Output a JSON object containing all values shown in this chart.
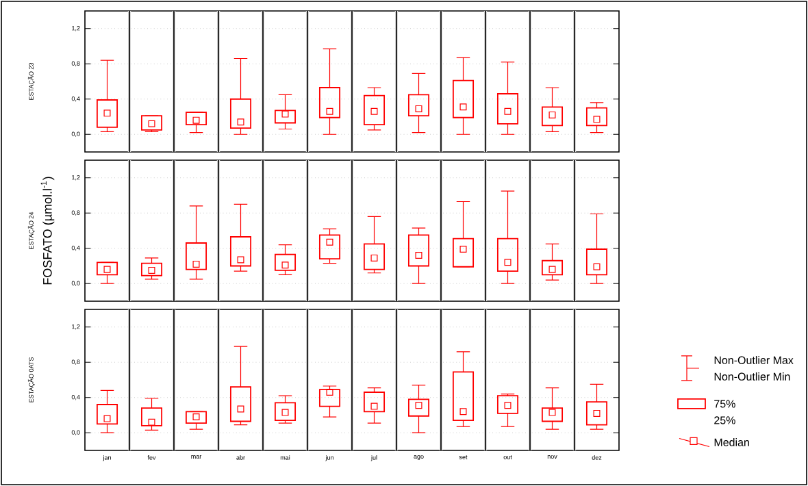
{
  "chart_data": [
    {
      "type": "box",
      "ylabel": "ESTAÇÃO 23",
      "categories": [
        null,
        null,
        null,
        null,
        null,
        null,
        null,
        null,
        null,
        null,
        null,
        null
      ],
      "ylim": [
        -0.2,
        1.4
      ],
      "yticks": [
        {
          "value": 0,
          "label": "0,0"
        },
        {
          "value": 0.4,
          "label": "0,4"
        },
        {
          "value": 0.8,
          "label": "0,8"
        },
        {
          "value": 1.2,
          "label": "1,2"
        }
      ],
      "grid": "y",
      "tick_labels": "y",
      "color": "#ff0000",
      "boxes": [
        {
          "low": 0.03,
          "q1": 0.08,
          "median": 0.24,
          "q3": 0.39,
          "high": 0.84
        },
        {
          "low": 0.03,
          "q1": 0.05,
          "median": 0.12,
          "q3": 0.21,
          "high": 0.21
        },
        {
          "low": 0.02,
          "q1": 0.11,
          "median": 0.16,
          "q3": 0.25,
          "high": 0.25
        },
        {
          "low": 0.0,
          "q1": 0.07,
          "median": 0.14,
          "q3": 0.4,
          "high": 0.86
        },
        {
          "low": 0.06,
          "q1": 0.13,
          "median": 0.23,
          "q3": 0.27,
          "high": 0.45
        },
        {
          "low": 0.0,
          "q1": 0.19,
          "median": 0.26,
          "q3": 0.53,
          "high": 0.97
        },
        {
          "low": 0.05,
          "q1": 0.11,
          "median": 0.26,
          "q3": 0.44,
          "high": 0.53
        },
        {
          "low": 0.02,
          "q1": 0.21,
          "median": 0.29,
          "q3": 0.45,
          "high": 0.69
        },
        {
          "low": 0.0,
          "q1": 0.19,
          "median": 0.31,
          "q3": 0.61,
          "high": 0.87
        },
        {
          "low": 0.0,
          "q1": 0.12,
          "median": 0.26,
          "q3": 0.46,
          "high": 0.82
        },
        {
          "low": 0.03,
          "q1": 0.1,
          "median": 0.22,
          "q3": 0.31,
          "high": 0.53
        },
        {
          "low": 0.02,
          "q1": 0.1,
          "median": 0.17,
          "q3": 0.3,
          "high": 0.36
        }
      ]
    },
    {
      "type": "box",
      "ylabel": "ESTAÇÃO 24",
      "annotations": [
        "FOSFATO (µmol.l$^{-1}$)"
      ],
      "categories": [
        null,
        null,
        null,
        null,
        null,
        null,
        null,
        null,
        null,
        null,
        null,
        null
      ],
      "ylim": [
        -0.2,
        1.4
      ],
      "yticks": [
        {
          "value": 0,
          "label": "0,0"
        },
        {
          "value": 0.4,
          "label": "0,4"
        },
        {
          "value": 0.8,
          "label": "0,8"
        },
        {
          "value": 1.2,
          "label": "1,2"
        }
      ],
      "grid": "y",
      "tick_labels": "y",
      "color": "#ff0000",
      "boxes": [
        {
          "low": 0.0,
          "q1": 0.1,
          "median": 0.16,
          "q3": 0.24,
          "high": 0.24
        },
        {
          "low": 0.05,
          "q1": 0.09,
          "median": 0.15,
          "q3": 0.23,
          "high": 0.29
        },
        {
          "low": 0.05,
          "q1": 0.16,
          "median": 0.22,
          "q3": 0.46,
          "high": 0.88
        },
        {
          "low": 0.14,
          "q1": 0.2,
          "median": 0.27,
          "q3": 0.53,
          "high": 0.9
        },
        {
          "low": 0.1,
          "q1": 0.15,
          "median": 0.21,
          "q3": 0.33,
          "high": 0.44
        },
        {
          "low": 0.23,
          "q1": 0.28,
          "median": 0.47,
          "q3": 0.55,
          "high": 0.62
        },
        {
          "low": 0.12,
          "q1": 0.16,
          "median": 0.29,
          "q3": 0.45,
          "high": 0.76
        },
        {
          "low": 0.0,
          "q1": 0.2,
          "median": 0.32,
          "q3": 0.55,
          "high": 0.63
        },
        {
          "low": 0.19,
          "q1": 0.19,
          "median": 0.39,
          "q3": 0.51,
          "high": 0.93
        },
        {
          "low": 0.0,
          "q1": 0.14,
          "median": 0.24,
          "q3": 0.51,
          "high": 1.05
        },
        {
          "low": 0.04,
          "q1": 0.1,
          "median": 0.16,
          "q3": 0.26,
          "high": 0.45
        },
        {
          "low": 0.0,
          "q1": 0.1,
          "median": 0.19,
          "q3": 0.39,
          "high": 0.79
        }
      ]
    },
    {
      "type": "box",
      "ylabel": "ESTAÇÃO 0ATS",
      "annotations": [
        "Non-Outlier Max",
        "Non-Outlier Min",
        "75%",
        "25%",
        "Median"
      ],
      "categories": [
        "jan",
        "fev",
        "mar",
        "abr",
        "mai",
        "jun",
        "jul",
        "ago",
        "set",
        "out",
        "nov",
        "dez"
      ],
      "ylim": [
        -0.2,
        1.4
      ],
      "yticks": [
        {
          "value": 0,
          "label": "0,0"
        },
        {
          "value": 0.4,
          "label": "0,4"
        },
        {
          "value": 0.8,
          "label": "0,8"
        },
        {
          "value": 1.2,
          "label": "1,2"
        }
      ],
      "grid": "y",
      "color": "#ff0000",
      "boxes": [
        {
          "low": 0.0,
          "q1": 0.1,
          "median": 0.16,
          "q3": 0.32,
          "high": 0.48
        },
        {
          "low": 0.03,
          "q1": 0.08,
          "median": 0.12,
          "q3": 0.28,
          "high": 0.39
        },
        {
          "low": 0.04,
          "q1": 0.11,
          "median": 0.18,
          "q3": 0.24,
          "high": 0.24
        },
        {
          "low": 0.09,
          "q1": 0.13,
          "median": 0.27,
          "q3": 0.52,
          "high": 0.98
        },
        {
          "low": 0.11,
          "q1": 0.14,
          "median": 0.23,
          "q3": 0.34,
          "high": 0.42
        },
        {
          "low": 0.18,
          "q1": 0.3,
          "median": 0.46,
          "q3": 0.49,
          "high": 0.53
        },
        {
          "low": 0.11,
          "q1": 0.24,
          "median": 0.3,
          "q3": 0.46,
          "high": 0.51
        },
        {
          "low": 0.0,
          "q1": 0.19,
          "median": 0.31,
          "q3": 0.38,
          "high": 0.54
        },
        {
          "low": 0.07,
          "q1": 0.14,
          "median": 0.24,
          "q3": 0.69,
          "high": 0.92
        },
        {
          "low": 0.07,
          "q1": 0.22,
          "median": 0.31,
          "q3": 0.42,
          "high": 0.44
        },
        {
          "low": 0.04,
          "q1": 0.13,
          "median": 0.23,
          "q3": 0.28,
          "high": 0.51
        },
        {
          "low": 0.04,
          "q1": 0.09,
          "median": 0.22,
          "q3": 0.35,
          "high": 0.55
        }
      ]
    }
  ]
}
